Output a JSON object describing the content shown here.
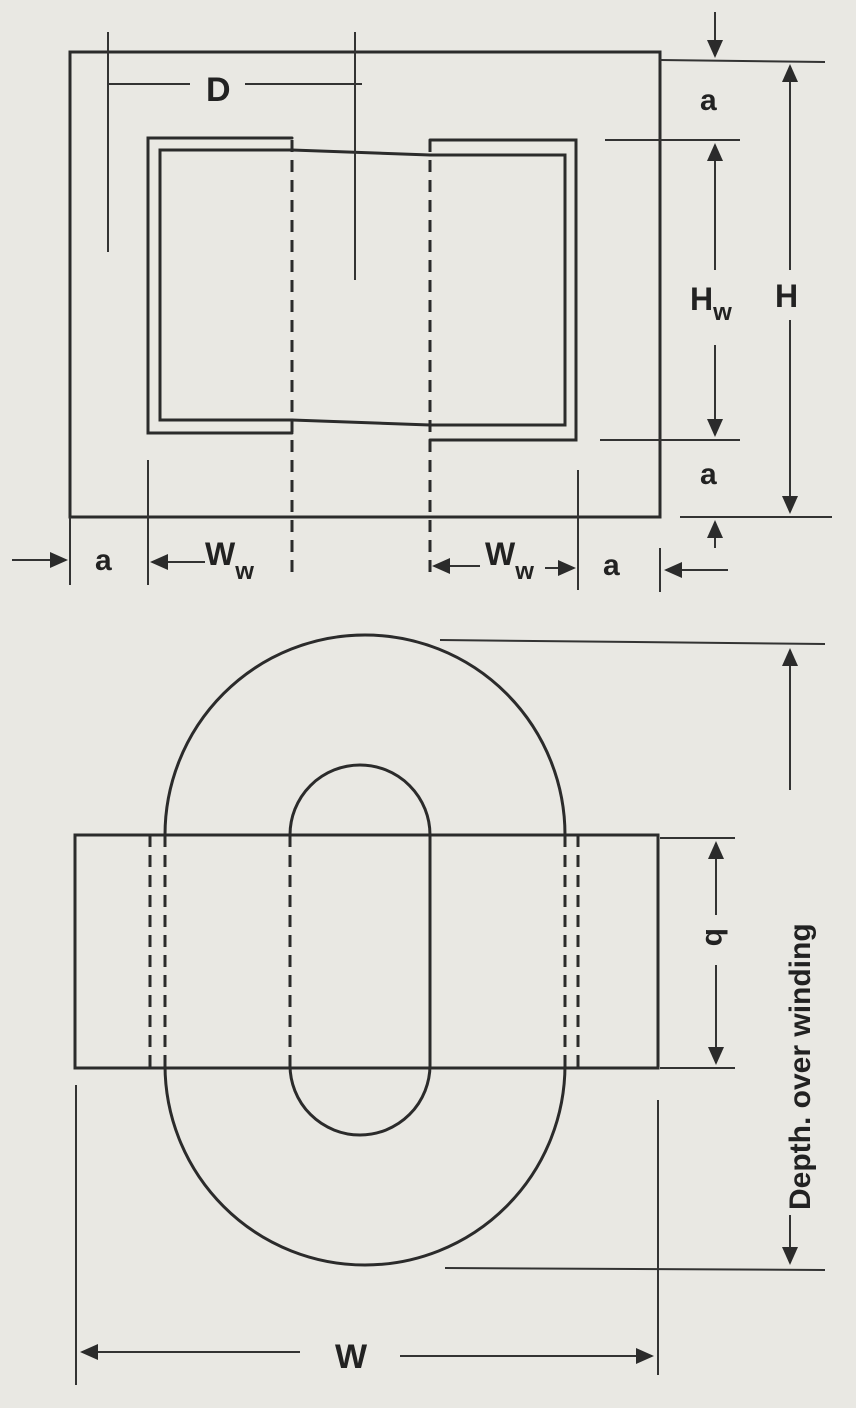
{
  "labels": {
    "D": "D",
    "a_top": "a",
    "a_mid": "a",
    "Hw_main": "H",
    "Hw_sub": "w",
    "H": "H",
    "a_left": "a",
    "Ww1_main": "W",
    "Ww1_sub": "w",
    "Ww2_main": "W",
    "Ww2_sub": "w",
    "a_right": "a",
    "b": "b",
    "depth": "Depth. over winding",
    "W": "W"
  },
  "colors": {
    "ink": "#2b2b2b",
    "paper": "#e9e8e3"
  }
}
